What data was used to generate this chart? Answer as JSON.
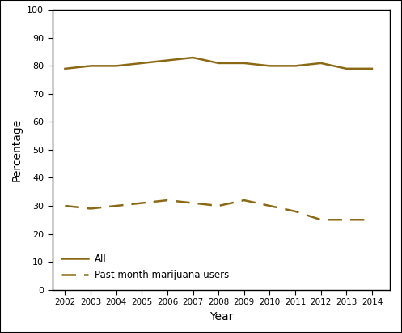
{
  "years": [
    2002,
    2003,
    2004,
    2005,
    2006,
    2007,
    2008,
    2009,
    2010,
    2011,
    2012,
    2013,
    2014
  ],
  "all_persons": [
    79,
    80,
    80,
    81,
    82,
    83,
    81,
    81,
    80,
    80,
    81,
    79,
    79
  ],
  "past_month_users": [
    30,
    29,
    30,
    31,
    32,
    31,
    30,
    32,
    30,
    28,
    25,
    25,
    25
  ],
  "line_color": "#8B6914",
  "ylabel": "Percentage",
  "xlabel": "Year",
  "ylim": [
    0,
    100
  ],
  "yticks": [
    0,
    10,
    20,
    30,
    40,
    50,
    60,
    70,
    80,
    90,
    100
  ],
  "legend_all": "All",
  "legend_users": "Past month marijuana users",
  "bg_color": "#ffffff",
  "figsize": [
    4.97,
    4.11
  ],
  "dpi": 100
}
